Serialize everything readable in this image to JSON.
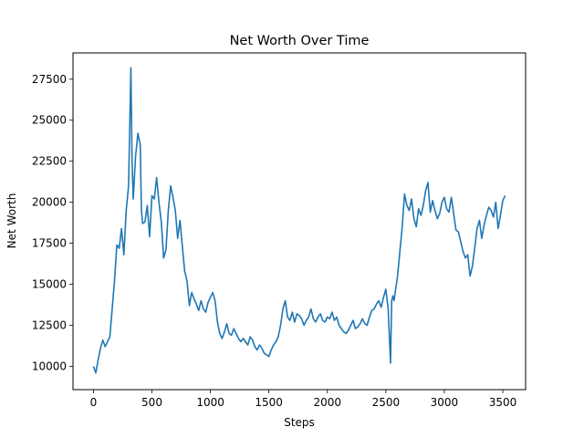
{
  "chart_data": {
    "type": "line",
    "title": "Net Worth Over Time",
    "xlabel": "Steps",
    "ylabel": "Net Worth",
    "xlim": [
      -175,
      3695
    ],
    "ylim": [
      8580,
      29100
    ],
    "xticks": [
      0,
      500,
      1000,
      1500,
      2000,
      2500,
      3000,
      3500
    ],
    "yticks": [
      10000,
      12500,
      15000,
      17500,
      20000,
      22500,
      25000,
      27500
    ],
    "grid": false,
    "legend": "none",
    "color": "#1f77b4",
    "series": [
      {
        "x": [
          0,
          20,
          40,
          60,
          80,
          100,
          120,
          140,
          160,
          180,
          200,
          220,
          240,
          260,
          280,
          300,
          310,
          320,
          330,
          340,
          360,
          380,
          400,
          410,
          420,
          440,
          460,
          480,
          500,
          520,
          540,
          560,
          580,
          600,
          620,
          640,
          660,
          680,
          700,
          720,
          740,
          760,
          780,
          800,
          820,
          840,
          860,
          880,
          900,
          920,
          940,
          960,
          980,
          1000,
          1020,
          1040,
          1060,
          1080,
          1100,
          1120,
          1140,
          1160,
          1180,
          1200,
          1220,
          1240,
          1260,
          1280,
          1300,
          1320,
          1340,
          1360,
          1380,
          1400,
          1420,
          1440,
          1460,
          1480,
          1500,
          1520,
          1540,
          1560,
          1580,
          1600,
          1620,
          1640,
          1660,
          1680,
          1700,
          1720,
          1740,
          1760,
          1780,
          1800,
          1820,
          1840,
          1860,
          1880,
          1900,
          1920,
          1940,
          1960,
          1980,
          2000,
          2020,
          2040,
          2060,
          2080,
          2100,
          2120,
          2140,
          2160,
          2180,
          2200,
          2220,
          2240,
          2260,
          2280,
          2300,
          2320,
          2340,
          2360,
          2380,
          2400,
          2420,
          2440,
          2460,
          2480,
          2500,
          2520,
          2540,
          2550,
          2560,
          2570,
          2580,
          2600,
          2620,
          2640,
          2660,
          2680,
          2700,
          2720,
          2740,
          2760,
          2780,
          2800,
          2820,
          2840,
          2860,
          2880,
          2900,
          2920,
          2940,
          2960,
          2980,
          3000,
          3020,
          3040,
          3060,
          3080,
          3100,
          3120,
          3140,
          3160,
          3180,
          3200,
          3220,
          3240,
          3260,
          3280,
          3300,
          3320,
          3340,
          3360,
          3380,
          3400,
          3420,
          3440,
          3460,
          3480,
          3500,
          3520
        ],
        "y": [
          10000,
          9600,
          10400,
          11100,
          11600,
          11200,
          11500,
          11800,
          13500,
          15200,
          17400,
          17200,
          18400,
          16800,
          19500,
          21000,
          24500,
          28200,
          22500,
          20200,
          22800,
          24200,
          23500,
          19500,
          18700,
          18800,
          19800,
          17900,
          20400,
          20200,
          21500,
          20000,
          18800,
          16600,
          17100,
          19500,
          21000,
          20300,
          19500,
          17800,
          18900,
          17300,
          15800,
          15200,
          13700,
          14500,
          14100,
          13800,
          13400,
          14000,
          13500,
          13300,
          13900,
          14200,
          14500,
          14000,
          12700,
          12000,
          11700,
          12100,
          12600,
          12000,
          11900,
          12300,
          12000,
          11700,
          11500,
          11700,
          11500,
          11300,
          11800,
          11600,
          11200,
          11000,
          11300,
          11100,
          10800,
          10700,
          10600,
          11000,
          11300,
          11500,
          11800,
          12500,
          13500,
          14000,
          13000,
          12800,
          13300,
          12700,
          13200,
          13100,
          12900,
          12500,
          12800,
          13000,
          13500,
          12900,
          12700,
          13000,
          13200,
          12800,
          12700,
          13000,
          12900,
          13300,
          12800,
          13000,
          12500,
          12300,
          12100,
          12000,
          12200,
          12500,
          12800,
          12300,
          12400,
          12600,
          12900,
          12600,
          12500,
          13000,
          13400,
          13500,
          13800,
          14000,
          13600,
          14200,
          14700,
          13500,
          10200,
          14000,
          14300,
          14000,
          14500,
          15500,
          17000,
          18500,
          20500,
          19800,
          19500,
          20200,
          19000,
          18500,
          19600,
          19200,
          19800,
          20700,
          21200,
          19400,
          20100,
          19500,
          19000,
          19300,
          20000,
          20300,
          19600,
          19400,
          20300,
          19300,
          18300,
          18200,
          17600,
          17000,
          16600,
          16800,
          15500,
          16100,
          17200,
          18400,
          18900,
          17800,
          18600,
          19200,
          19700,
          19500,
          19100,
          20000,
          18400,
          19200,
          20100,
          20400
        ]
      }
    ]
  }
}
